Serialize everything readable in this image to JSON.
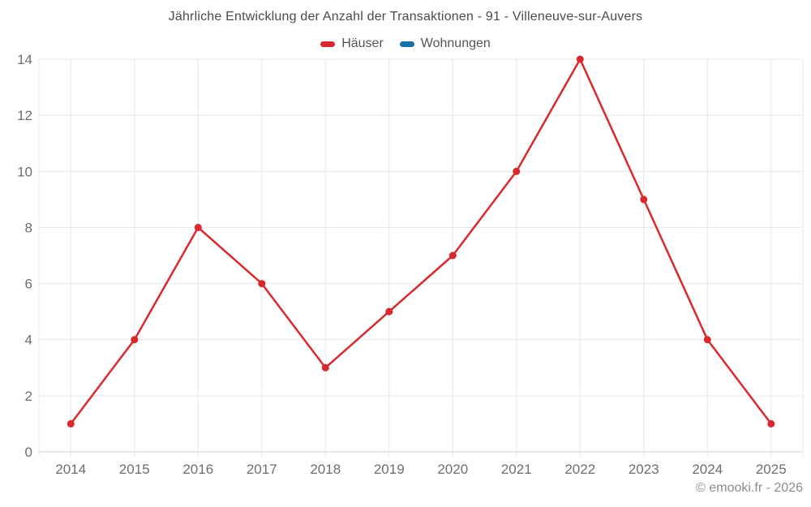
{
  "title": "Jährliche Entwicklung der Anzahl der Transaktionen - 91 - Villeneuve-sur-Auvers",
  "footer": "© emooki.fr - 2026",
  "chart_data": {
    "type": "line",
    "title": "Jährliche Entwicklung der Anzahl der Transaktionen - 91 - Villeneuve-sur-Auvers",
    "categories": [
      "2014",
      "2015",
      "2016",
      "2017",
      "2018",
      "2019",
      "2020",
      "2021",
      "2022",
      "2023",
      "2024",
      "2025"
    ],
    "series": [
      {
        "name": "Häuser",
        "color": "#d8292f",
        "values": [
          1,
          4,
          8,
          6,
          3,
          5,
          7,
          10,
          14,
          9,
          4,
          1
        ]
      },
      {
        "name": "Wohnungen",
        "color": "#1b6fa8",
        "values": []
      }
    ],
    "xlabel": "",
    "ylabel": "",
    "ylim": [
      0,
      14
    ],
    "ytick_step": 2,
    "ytick_labels": [
      "0",
      "2",
      "4",
      "6",
      "8",
      "10",
      "12",
      "14"
    ],
    "grid": true,
    "legend_position": "top",
    "marker_radius": 4.5,
    "line_width": 2.5
  },
  "colors": {
    "haeuser_red": "#d8292f",
    "wohnungen_blue": "#1b6fa8",
    "gridline": "#e7e7e7",
    "axis_line": "#cfcfcf",
    "tick_label": "#6e6e6e",
    "title_text": "#4b4b4b",
    "footer_text": "#8c8c8c"
  }
}
